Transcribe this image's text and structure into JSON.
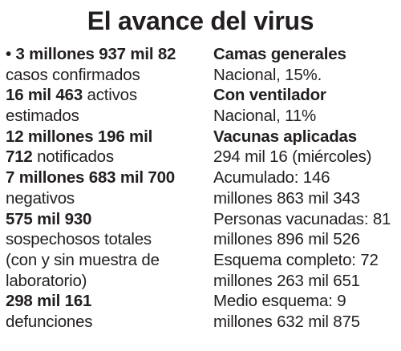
{
  "title": "El avance del virus",
  "left_column": {
    "bullet": "•",
    "confirmed_value": "3 millones 937 mil 82",
    "confirmed_label": "casos confirmados",
    "active_value": "16 mil 463",
    "active_label_1": "activos",
    "active_label_2": "estimados",
    "reported_value_1": "12 millones 196 mil",
    "reported_value_2": "712",
    "reported_label": "notificados",
    "negative_value": "7 millones 683 mil 700",
    "negative_label": "negativos",
    "suspected_value": "575 mil 930",
    "suspected_label_1": "sospechosos totales",
    "suspected_label_2": "(con y sin muestra de",
    "suspected_label_3": "laboratorio)",
    "deaths_value": "298 mil 161",
    "deaths_label": "defunciones"
  },
  "right_column": {
    "general_beds_heading": "Camas generales",
    "general_beds_value": "Nacional, 15%.",
    "ventilator_heading": "Con ventilador",
    "ventilator_value": "Nacional, 11%",
    "vaccines_heading": "Vacunas aplicadas",
    "vaccines_daily": "294 mil 16 (miércoles)",
    "accumulated_1": "Acumulado: 146",
    "accumulated_2": "millones 863 mil 343",
    "vaccinated_1": "Personas vacunadas: 81",
    "vaccinated_2": "millones 896 mil 526",
    "full_scheme_1": "Esquema completo: 72",
    "full_scheme_2": "millones 263 mil 651",
    "half_scheme_1": "Medio esquema: 9",
    "half_scheme_2": "millones 632 mil 875"
  }
}
